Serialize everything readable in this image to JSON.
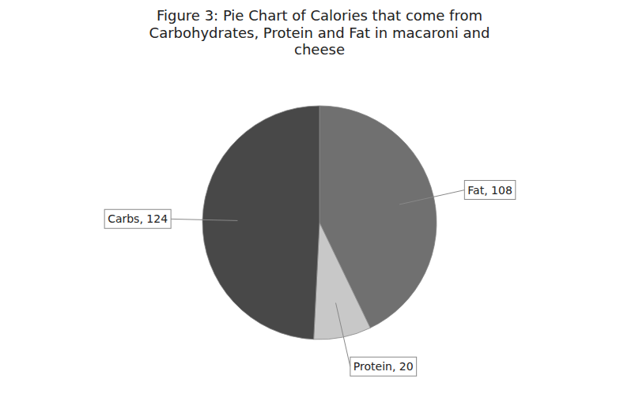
{
  "chart_data": {
    "type": "pie",
    "title": "Figure 3: Pie Chart of Calories that come from\nCarbohydrates,  Protein and Fat in macaroni and\ncheese",
    "values": [
      108,
      20,
      124
    ],
    "value_labels": [
      "Fat, 108",
      "Protein, 20",
      "Carbs, 124"
    ],
    "colors": [
      "#707070",
      "#c8c8c8",
      "#484848"
    ]
  }
}
